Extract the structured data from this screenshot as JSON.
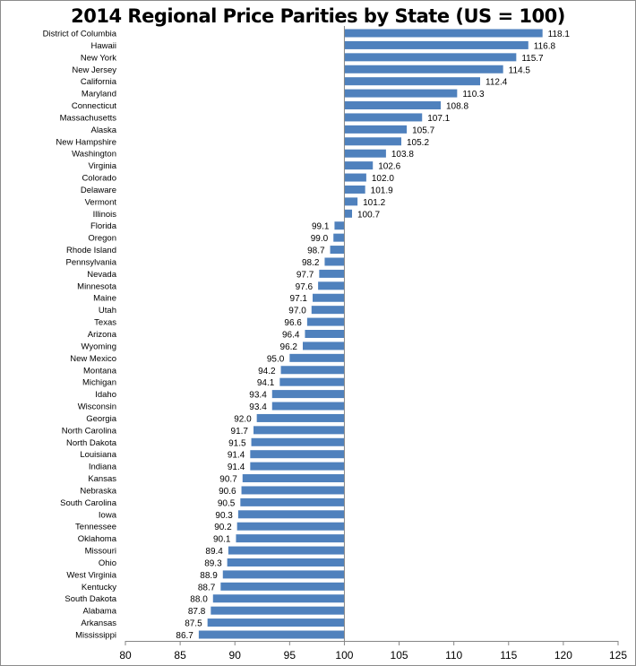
{
  "chart_data": {
    "type": "bar",
    "orientation": "horizontal",
    "title": "2014 Regional Price Parities by State (US = 100)",
    "xlabel": "",
    "ylabel": "",
    "xlim": [
      80,
      125
    ],
    "baseline": 100,
    "xticks": [
      80,
      85,
      90,
      95,
      100,
      105,
      110,
      115,
      120,
      125
    ],
    "grid": false,
    "legend": "none",
    "bar_color": "#4f81bd",
    "categories": [
      "District of Columbia",
      "Hawaii",
      "New York",
      "New Jersey",
      "California",
      "Maryland",
      "Connecticut",
      "Massachusetts",
      "Alaska",
      "New Hampshire",
      "Washington",
      "Virginia",
      "Colorado",
      "Delaware",
      "Vermont",
      "Illinois",
      "Florida",
      "Oregon",
      "Rhode Island",
      "Pennsylvania",
      "Nevada",
      "Minnesota",
      "Maine",
      "Utah",
      "Texas",
      "Arizona",
      "Wyoming",
      "New Mexico",
      "Montana",
      "Michigan",
      "Idaho",
      "Wisconsin",
      "Georgia",
      "North Carolina",
      "North Dakota",
      "Louisiana",
      "Indiana",
      "Kansas",
      "Nebraska",
      "South Carolina",
      "Iowa",
      "Tennessee",
      "Oklahoma",
      "Missouri",
      "Ohio",
      "West Virginia",
      "Kentucky",
      "South Dakota",
      "Alabama",
      "Arkansas",
      "Mississippi"
    ],
    "values": [
      118.1,
      116.8,
      115.7,
      114.5,
      112.4,
      110.3,
      108.8,
      107.1,
      105.7,
      105.2,
      103.8,
      102.6,
      102.0,
      101.9,
      101.2,
      100.7,
      99.1,
      99.0,
      98.7,
      98.2,
      97.7,
      97.6,
      97.1,
      97.0,
      96.6,
      96.4,
      96.2,
      95.0,
      94.2,
      94.1,
      93.4,
      93.4,
      92.0,
      91.7,
      91.5,
      91.4,
      91.4,
      90.7,
      90.6,
      90.5,
      90.3,
      90.2,
      90.1,
      89.4,
      89.3,
      88.9,
      88.7,
      88.0,
      87.8,
      87.5,
      86.7
    ],
    "value_labels": [
      "118.1",
      "116.8",
      "115.7",
      "114.5",
      "112.4",
      "110.3",
      "108.8",
      "107.1",
      "105.7",
      "105.2",
      "103.8",
      "102.6",
      "102.0",
      "101.9",
      "101.2",
      "100.7",
      "99.1",
      "99.0",
      "98.7",
      "98.2",
      "97.7",
      "97.6",
      "97.1",
      "97.0",
      "96.6",
      "96.4",
      "96.2",
      "95.0",
      "94.2",
      "94.1",
      "93.4",
      "93.4",
      "92.0",
      "91.7",
      "91.5",
      "91.4",
      "91.4",
      "90.7",
      "90.6",
      "90.5",
      "90.3",
      "90.2",
      "90.1",
      "89.4",
      "89.3",
      "88.9",
      "88.7",
      "88.0",
      "87.8",
      "87.5",
      "86.7"
    ]
  }
}
